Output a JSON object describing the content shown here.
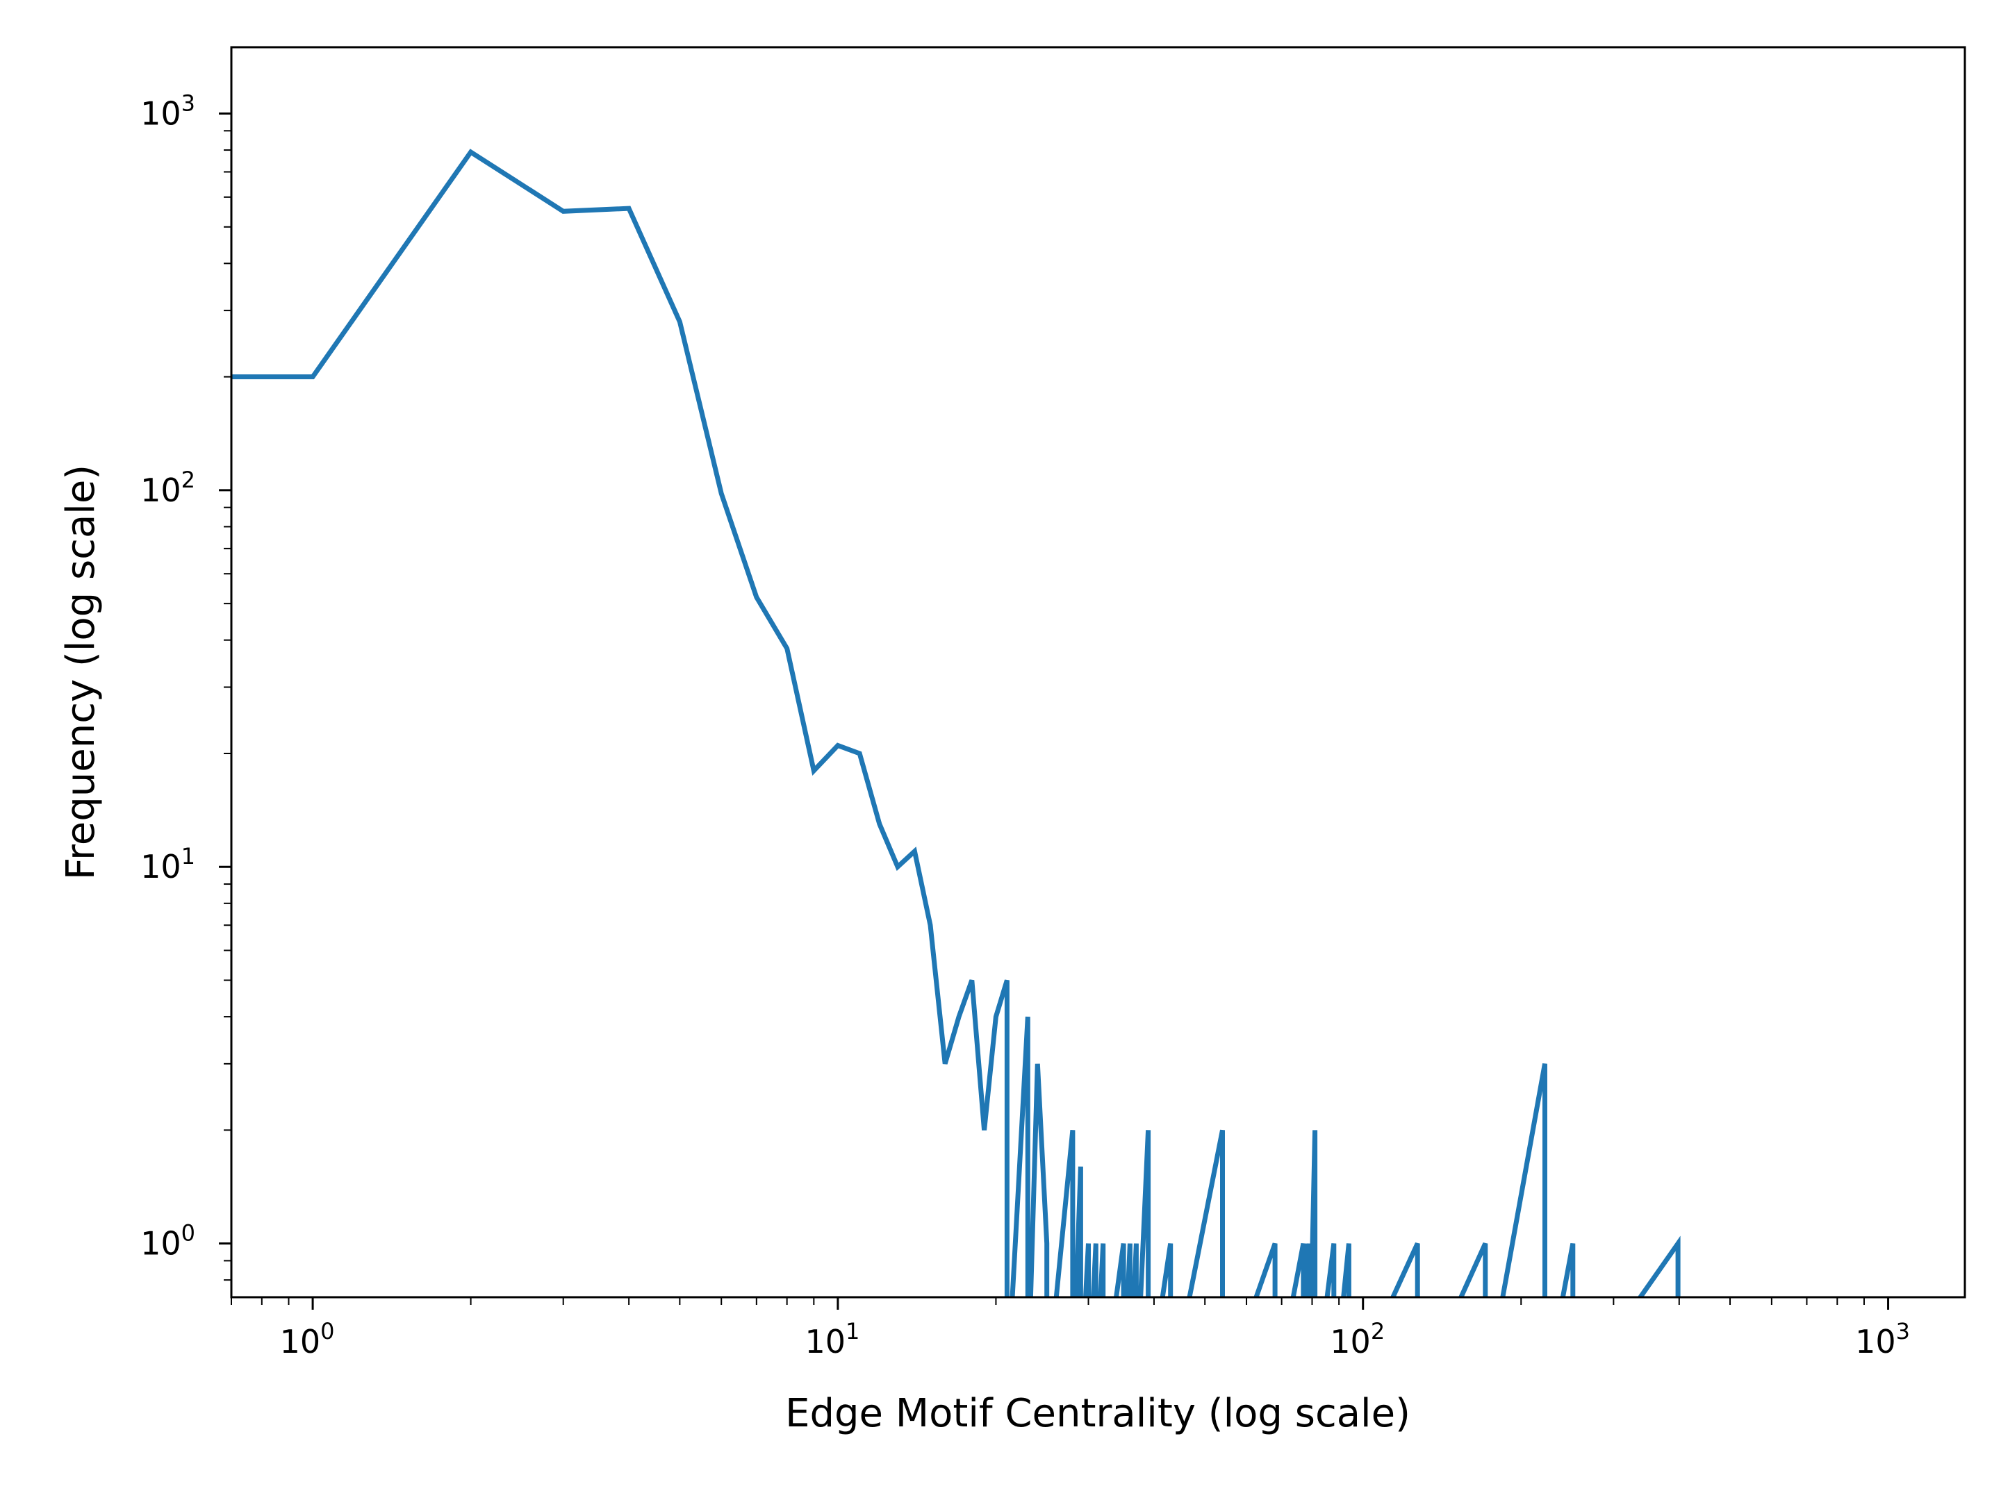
{
  "chart_data": {
    "type": "line",
    "title": "",
    "xlabel": "Edge Motif Centrality (log scale)",
    "ylabel": "Frequency (log scale)",
    "xscale": "log",
    "yscale": "log",
    "xlim": [
      0.7,
      1400
    ],
    "ylim": [
      0.72,
      1500
    ],
    "grid": false,
    "legend": "none",
    "line_color": "#1f77b4",
    "x_ticks": [
      {
        "value": 1,
        "base": "10",
        "exp": "0"
      },
      {
        "value": 10,
        "base": "10",
        "exp": "1"
      },
      {
        "value": 100,
        "base": "10",
        "exp": "2"
      },
      {
        "value": 1000,
        "base": "10",
        "exp": "3"
      }
    ],
    "y_ticks": [
      {
        "value": 1,
        "base": "10",
        "exp": "0"
      },
      {
        "value": 10,
        "base": "10",
        "exp": "1"
      },
      {
        "value": 100,
        "base": "10",
        "exp": "2"
      },
      {
        "value": 1000,
        "base": "10",
        "exp": "3"
      }
    ],
    "series": [
      {
        "x": [
          0.7,
          1,
          2,
          3,
          4,
          5,
          6,
          7,
          8,
          9,
          10,
          11,
          12,
          13,
          14,
          15,
          16,
          17,
          18,
          19,
          20,
          21,
          21,
          23,
          23,
          24,
          25,
          25,
          28,
          28,
          29,
          29,
          30,
          30,
          31,
          31,
          32,
          32,
          35,
          35,
          36,
          36,
          37,
          37,
          39,
          39,
          43,
          43,
          54,
          54,
          68,
          68,
          77,
          77,
          78,
          78,
          79,
          79,
          81,
          81,
          88,
          88,
          94,
          94,
          127,
          127,
          171,
          171,
          222,
          222,
          251,
          251,
          398,
          398
        ],
        "y": [
          200,
          200,
          790,
          550,
          560,
          280,
          98,
          52,
          38,
          18,
          21,
          20,
          13,
          10,
          11,
          7,
          3,
          4,
          5,
          2,
          4,
          5,
          0.4,
          4,
          0.4,
          3,
          1,
          0.4,
          2,
          0.4,
          1.6,
          0.4,
          1,
          0.4,
          1,
          0.4,
          1,
          0.4,
          1,
          0.4,
          1,
          0.4,
          1,
          0.4,
          2,
          0.4,
          1,
          0.4,
          2,
          0.4,
          1,
          0.4,
          1,
          0.4,
          1,
          0.4,
          1,
          0.4,
          2,
          0.4,
          1,
          0.4,
          1,
          0.4,
          1,
          0.4,
          1,
          0.4,
          3,
          0.4,
          1,
          0.4,
          1,
          0.4
        ]
      }
    ]
  }
}
